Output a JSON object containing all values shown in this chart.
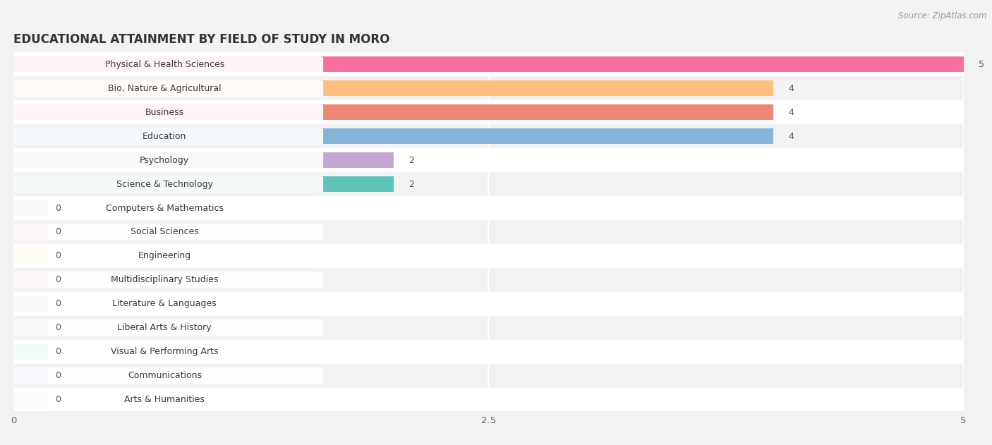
{
  "title": "EDUCATIONAL ATTAINMENT BY FIELD OF STUDY IN MORO",
  "source": "Source: ZipAtlas.com",
  "categories": [
    "Physical & Health Sciences",
    "Bio, Nature & Agricultural",
    "Business",
    "Education",
    "Psychology",
    "Science & Technology",
    "Computers & Mathematics",
    "Social Sciences",
    "Engineering",
    "Multidisciplinary Studies",
    "Literature & Languages",
    "Liberal Arts & History",
    "Visual & Performing Arts",
    "Communications",
    "Arts & Humanities"
  ],
  "values": [
    5,
    4,
    4,
    4,
    2,
    2,
    0,
    0,
    0,
    0,
    0,
    0,
    0,
    0,
    0
  ],
  "bar_colors": [
    "#F76FA0",
    "#FFBE7B",
    "#F08878",
    "#85B4DA",
    "#C4A8D5",
    "#5EC4B8",
    "#A8B5E8",
    "#F7AABB",
    "#FFCB98",
    "#F0A898",
    "#A8BEEA",
    "#C8B2D8",
    "#62C4B8",
    "#B5BCEA",
    "#F9B8C4"
  ],
  "xlim": [
    0,
    5
  ],
  "xticks": [
    0,
    2.5,
    5
  ],
  "background_color": "#F2F2F2",
  "bar_background_color": "#E8E8E8",
  "row_alt_color": "#FFFFFF",
  "title_fontsize": 12,
  "source_fontsize": 8.5,
  "label_fontsize": 9,
  "value_fontsize": 9
}
